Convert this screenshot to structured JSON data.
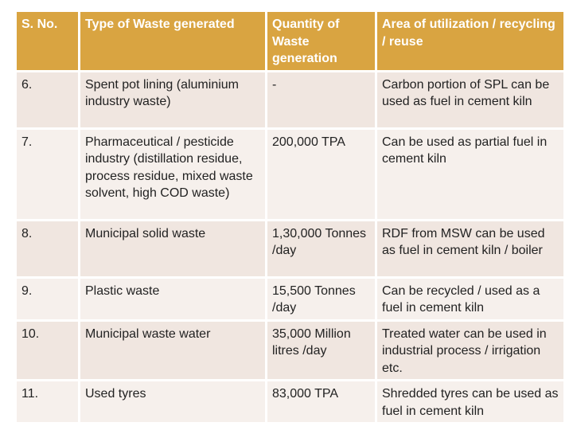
{
  "table": {
    "headers": [
      "S. No.",
      "Type of Waste generated",
      "Quantity of Waste generation",
      "Area of utilization / recycling / reuse"
    ],
    "rows": [
      {
        "sno": "6.",
        "type": "Spent pot lining (aluminium industry waste)",
        "quantity": "-",
        "area": "Carbon portion of SPL can be used as fuel in cement kiln"
      },
      {
        "sno": "7.",
        "type": "Pharmaceutical / pesticide industry (distillation residue, process residue, mixed waste solvent, high COD waste)",
        "quantity": "200,000 TPA",
        "area": "Can be used as partial fuel in cement kiln"
      },
      {
        "sno": "8.",
        "type": "Municipal solid waste",
        "quantity": "1,30,000 Tonnes /day",
        "area": "RDF from MSW can be used as fuel in cement kiln / boiler"
      },
      {
        "sno": "9.",
        "type": "Plastic waste",
        "quantity": "15,500 Tonnes /day",
        "area": "Can be recycled / used as a fuel in cement kiln"
      },
      {
        "sno": "10.",
        "type": "Municipal waste water",
        "quantity": "35,000 Million litres /day",
        "area": "Treated water can be used in industrial process / irrigation etc."
      },
      {
        "sno": "11.",
        "type": "Used tyres",
        "quantity": "83,000 TPA",
        "area": "Shredded tyres can be used as fuel in cement kiln"
      }
    ]
  },
  "colors": {
    "header_bg": "#d9a441",
    "header_text": "#ffffff",
    "row_bg": "#f0e6e0",
    "row_alt_bg": "#f6f0ec"
  }
}
